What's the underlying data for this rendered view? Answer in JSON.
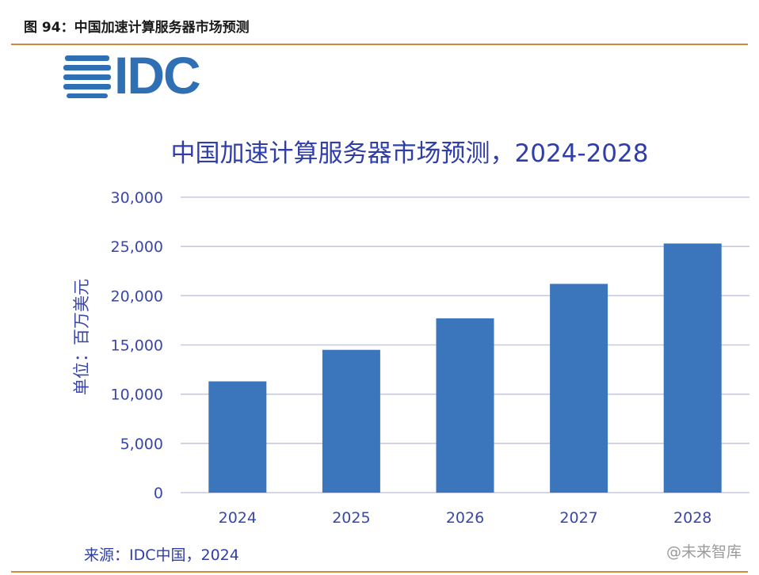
{
  "figure_caption": "图 94：中国加速计算服务器市场预测",
  "logo_text": "IDC",
  "source_text": "来源：IDC中国，2024",
  "watermark_text": "@未来智库",
  "colors": {
    "bar": "#3b75bc",
    "grid": "#c6c8e8",
    "axis_text": "#3a47a8",
    "title": "#2f3ea8",
    "logo": "#2f6fb4",
    "rule": "#d08a3a"
  },
  "chart_data": {
    "type": "bar",
    "title": "中国加速计算服务器市场预测，2024-2028",
    "ylabel": "单位：百万美元",
    "xlabel": "",
    "categories": [
      "2024",
      "2025",
      "2026",
      "2027",
      "2028"
    ],
    "values": [
      11300,
      14500,
      17700,
      21200,
      25300
    ],
    "ylim": [
      0,
      30000
    ],
    "yticks": [
      0,
      5000,
      10000,
      15000,
      20000,
      25000,
      30000
    ],
    "ytick_labels": [
      "0",
      "5,000",
      "10,000",
      "15,000",
      "20,000",
      "25,000",
      "30,000"
    ],
    "grid": true,
    "legend": "none"
  }
}
